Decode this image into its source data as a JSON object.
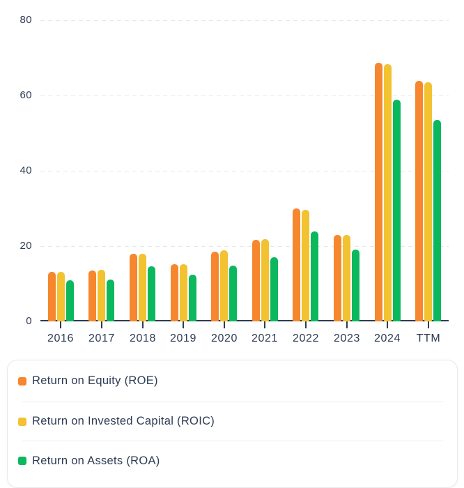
{
  "chart_data": {
    "type": "bar",
    "title": "",
    "categories": [
      "2016",
      "2017",
      "2018",
      "2019",
      "2020",
      "2021",
      "2022",
      "2023",
      "2024",
      "TTM"
    ],
    "series": [
      {
        "name": "ROE",
        "label": "Return on Equity (ROE)",
        "color": "#f6872e",
        "values": [
          13.1,
          13.6,
          17.9,
          15.1,
          18.6,
          21.6,
          30.0,
          22.9,
          68.7,
          63.9
        ]
      },
      {
        "name": "ROIC",
        "label": "Return on Invested Capital (ROIC)",
        "color": "#f2c231",
        "values": [
          13.1,
          13.7,
          18.0,
          15.1,
          18.8,
          21.8,
          29.7,
          22.9,
          68.3,
          63.6
        ]
      },
      {
        "name": "ROA",
        "label": "Return on Assets (ROA)",
        "color": "#0cb85d",
        "values": [
          11.0,
          11.2,
          14.6,
          12.4,
          14.9,
          17.1,
          23.8,
          19.0,
          58.8,
          53.6
        ]
      }
    ],
    "ylim": [
      0,
      80
    ],
    "y_ticks": [
      0,
      20,
      40,
      60,
      80
    ],
    "xlabel": "",
    "ylabel": "",
    "grid": "horizontal-dashed",
    "legend_position": "bottom-card"
  },
  "colors": {
    "axis": "#2e3b52",
    "grid": "#e7e7ea",
    "card_border": "#e9e9ee",
    "divider": "#ededf1",
    "background": "#ffffff"
  }
}
